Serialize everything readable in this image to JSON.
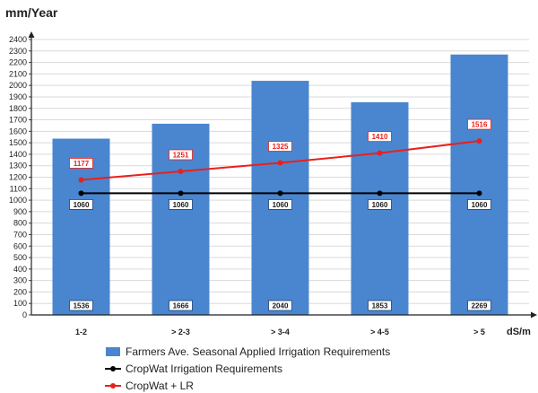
{
  "chart_data": {
    "type": "bar",
    "ylabel": "mm/Year",
    "xlabel": "dS/m",
    "categories": [
      "1-2",
      "> 2-3",
      "> 3-4",
      "> 4-5",
      "> 5"
    ],
    "ylim": [
      0,
      2400
    ],
    "ytick_step": 100,
    "grid": true,
    "legend_position": "bottom",
    "series": [
      {
        "name": "Farmers Ave. Seasonal Applied Irrigation Requirements",
        "kind": "bar",
        "color": "#4a86cf",
        "values": [
          1536,
          1666,
          2040,
          1853,
          2269
        ]
      },
      {
        "name": "CropWat Irrigation Requirements",
        "kind": "line",
        "color": "#000000",
        "values": [
          1060,
          1060,
          1060,
          1060,
          1060
        ]
      },
      {
        "name": "CropWat + LR",
        "kind": "line",
        "color": "#e8201e",
        "values": [
          1177,
          1251,
          1325,
          1410,
          1516
        ]
      }
    ]
  }
}
